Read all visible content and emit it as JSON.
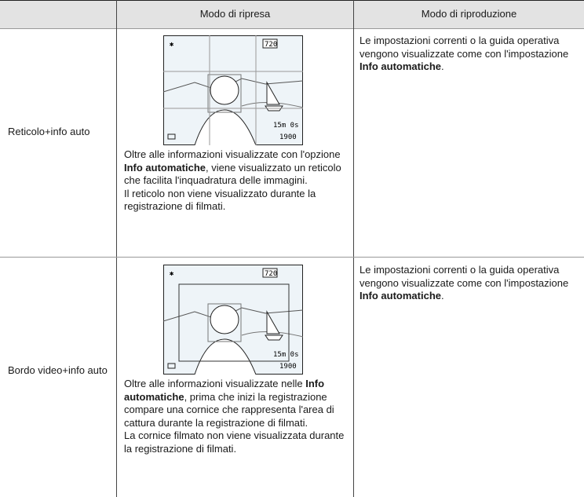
{
  "table": {
    "header": [
      "Modo di ripresa",
      "Modo di riproduzione"
    ],
    "rows": [
      {
        "label": "Reticolo+info auto",
        "screen": [
          "720",
          "15m 0s",
          "1900"
        ],
        "shooting": [
          "Oltre alle informazioni visualizzate con l'opzione ",
          "Info automatiche",
          ", viene visualizzato un reticolo che facilita l'inquadratura delle immagini.",
          "Il reticolo non viene visualizzato durante la registrazione di filmati."
        ],
        "playback": [
          "Le impostazioni correnti o la guida operativa vengono visualizzate come con l'impostazione ",
          "Info automatiche",
          "."
        ]
      },
      {
        "label": "Bordo video+info auto",
        "screen": [
          "720",
          "15m 0s",
          "1900"
        ],
        "shooting": [
          "Oltre alle informazioni visualizzate nelle ",
          "Info automatiche",
          ", prima che inizi la registrazione compare una cornice che rappresenta l'area di cattura durante la registrazione di filmati.",
          "La cornice filmato non viene visualizzata durante la registrazione di filmati."
        ],
        "playback": [
          "Le impostazioni correnti o la guida operativa vengono visualizzate come con l'impostazione ",
          "Info automatiche",
          "."
        ]
      }
    ]
  }
}
